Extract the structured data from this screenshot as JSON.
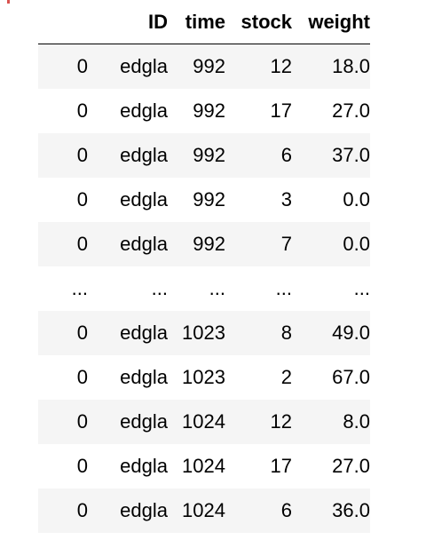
{
  "table": {
    "columns": [
      "",
      "ID",
      "time",
      "stock",
      "weight"
    ],
    "rows": [
      [
        "0",
        "edgla",
        "992",
        "12",
        "18.0"
      ],
      [
        "0",
        "edgla",
        "992",
        "17",
        "27.0"
      ],
      [
        "0",
        "edgla",
        "992",
        "6",
        "37.0"
      ],
      [
        "0",
        "edgla",
        "992",
        "3",
        "0.0"
      ],
      [
        "0",
        "edgla",
        "992",
        "7",
        "0.0"
      ],
      [
        "...",
        "...",
        "...",
        "...",
        "..."
      ],
      [
        "0",
        "edgla",
        "1023",
        "8",
        "49.0"
      ],
      [
        "0",
        "edgla",
        "1023",
        "2",
        "67.0"
      ],
      [
        "0",
        "edgla",
        "1024",
        "12",
        "8.0"
      ],
      [
        "0",
        "edgla",
        "1024",
        "17",
        "27.0"
      ],
      [
        "0",
        "edgla",
        "1024",
        "6",
        "36.0"
      ]
    ]
  },
  "colors": {
    "stripe": "#f5f5f5",
    "background": "#ffffff",
    "header_rule": "#000000",
    "corner_mark": "#d9534f"
  }
}
